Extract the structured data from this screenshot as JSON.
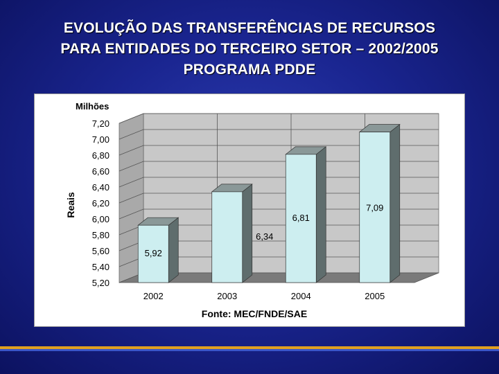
{
  "title": {
    "line1": "EVOLUÇÃO DAS TRANSFERÊNCIAS DE RECURSOS",
    "line2": "PARA ENTIDADES DO TERCEIRO SETOR – 2002/2005",
    "line3": "PROGRAMA PDDE"
  },
  "chart_data": {
    "type": "bar",
    "categories": [
      "2002",
      "2003",
      "2004",
      "2005"
    ],
    "values": [
      5.92,
      6.34,
      6.81,
      7.09
    ],
    "value_labels": [
      "5,92",
      "6,34",
      "6,81",
      "7,09"
    ],
    "ylabel": "Reais",
    "yunit": "Milhões",
    "ylim": [
      5.2,
      7.2
    ],
    "yticks": [
      "5,20",
      "5,40",
      "5,60",
      "5,80",
      "6,00",
      "6,20",
      "6,40",
      "6,60",
      "6,80",
      "7,00",
      "7,20"
    ],
    "grid": true,
    "legend": "none",
    "source": "Fonte: MEC/FNDE/SAE",
    "colors": {
      "bar_front": "#cdeef0",
      "bar_side": "#5f6d6d",
      "bar_top": "#8a9898",
      "wall": "#c8c8c8",
      "floor": "#7a7a7a"
    }
  }
}
